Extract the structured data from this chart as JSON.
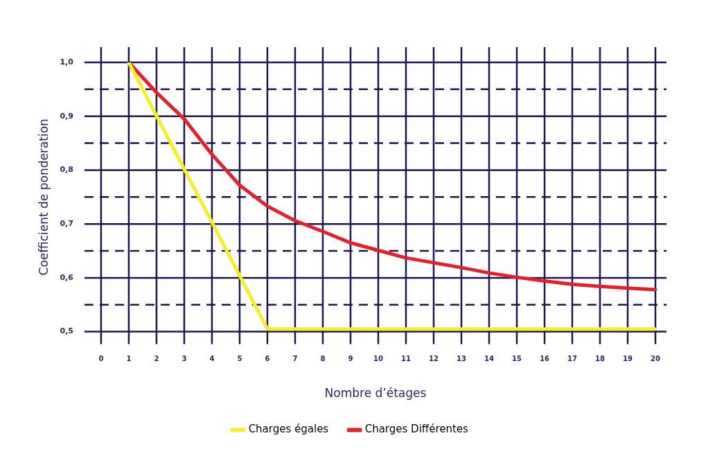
{
  "chart_data": {
    "type": "line",
    "xlabel": "Nombre d’étages",
    "ylabel": "Coefficient de ponderation",
    "xlim": [
      -0.6,
      20.4
    ],
    "ylim": [
      0.5,
      1.0
    ],
    "xticks": [
      0,
      1,
      2,
      3,
      4,
      5,
      6,
      7,
      8,
      9,
      10,
      11,
      12,
      13,
      14,
      15,
      16,
      17,
      18,
      19,
      20
    ],
    "yticks": [
      {
        "value": 0.5,
        "label": "0,5"
      },
      {
        "value": 0.55,
        "label": null
      },
      {
        "value": 0.6,
        "label": "0,6"
      },
      {
        "value": 0.65,
        "label": null
      },
      {
        "value": 0.7,
        "label": "0,7"
      },
      {
        "value": 0.75,
        "label": null
      },
      {
        "value": 0.8,
        "label": "0,8"
      },
      {
        "value": 0.85,
        "label": null
      },
      {
        "value": 0.9,
        "label": "0,9"
      },
      {
        "value": 0.95,
        "label": null
      },
      {
        "value": 1.0,
        "label": "1,0"
      }
    ],
    "grid": true,
    "legend": "bottom",
    "marker": "none",
    "line_style": "solid",
    "series": [
      {
        "name": "Charges égales",
        "color": "#f5ef2a",
        "x": [
          1,
          6,
          20
        ],
        "values": [
          1.0,
          0.505,
          0.505
        ]
      },
      {
        "name": "Charges Différentes",
        "color": "#e4202f",
        "x": [
          1,
          2,
          3,
          4,
          5,
          6,
          7,
          8,
          9,
          10,
          11,
          12,
          13,
          14,
          15,
          16,
          17,
          18,
          19,
          20
        ],
        "values": [
          1.0,
          0.944,
          0.895,
          0.829,
          0.772,
          0.733,
          0.706,
          0.686,
          0.665,
          0.651,
          0.637,
          0.628,
          0.619,
          0.609,
          0.601,
          0.594,
          0.588,
          0.584,
          0.581,
          0.578
        ]
      }
    ]
  }
}
